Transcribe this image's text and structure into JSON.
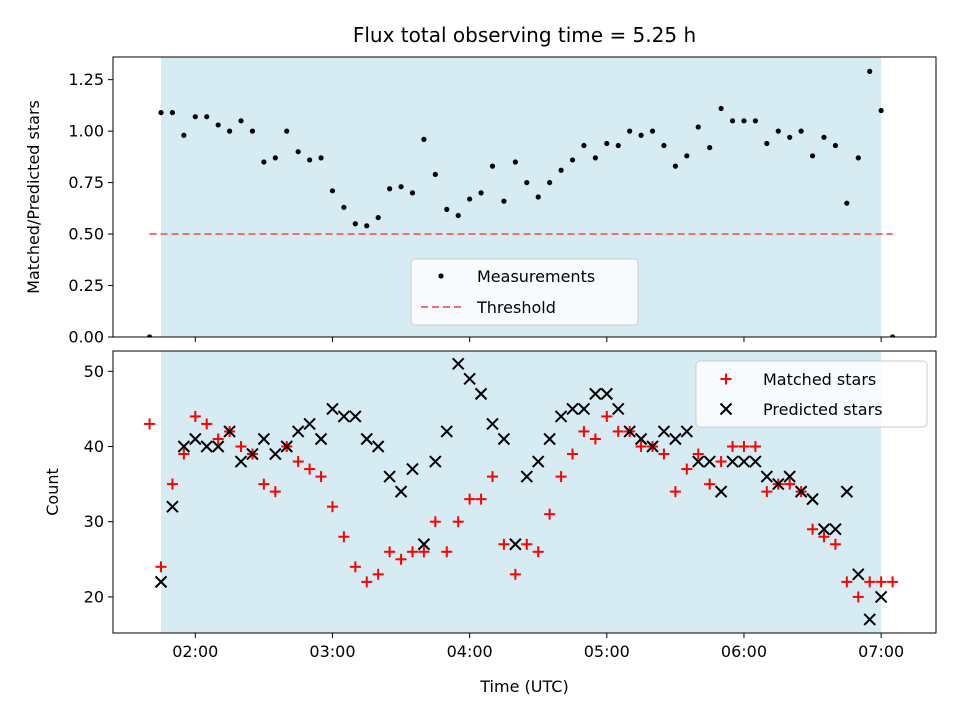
{
  "chart_data": [
    {
      "type": "scatter",
      "title": "Flux total observing time = 5.25 h",
      "ylabel": "Matched/Predicted stars",
      "ylim": [
        0,
        1.36
      ],
      "yticks": [
        0.0,
        0.25,
        0.5,
        0.75,
        1.0,
        1.25
      ],
      "ytick_labels": [
        "0.00",
        "0.25",
        "0.50",
        "0.75",
        "1.00",
        "1.25"
      ],
      "shaded_region": {
        "from": "01:45",
        "to": "07:00",
        "color": "#add8e6"
      },
      "threshold": {
        "value": 0.5,
        "from": "01:40",
        "to": "07:05",
        "color": "#f07070"
      },
      "legend": {
        "placement": "lower center",
        "entries": [
          "Measurements",
          "Threshold"
        ]
      },
      "series": [
        {
          "name": "Measurements",
          "color": "#000000",
          "marker": "dot",
          "x": [
            "01:40",
            "01:45",
            "01:50",
            "01:55",
            "02:00",
            "02:05",
            "02:10",
            "02:15",
            "02:20",
            "02:25",
            "02:30",
            "02:35",
            "02:40",
            "02:45",
            "02:50",
            "02:55",
            "03:00",
            "03:05",
            "03:10",
            "03:15",
            "03:20",
            "03:25",
            "03:30",
            "03:35",
            "03:40",
            "03:45",
            "03:50",
            "03:55",
            "04:00",
            "04:05",
            "04:10",
            "04:15",
            "04:20",
            "04:25",
            "04:30",
            "04:35",
            "04:40",
            "04:45",
            "04:50",
            "04:55",
            "05:00",
            "05:05",
            "05:10",
            "05:15",
            "05:20",
            "05:25",
            "05:30",
            "05:35",
            "05:40",
            "05:45",
            "05:50",
            "05:55",
            "06:00",
            "06:05",
            "06:10",
            "06:15",
            "06:20",
            "06:25",
            "06:30",
            "06:35",
            "06:40",
            "06:45",
            "06:50",
            "06:55",
            "07:00",
            "07:05"
          ],
          "y": [
            0.0,
            1.09,
            1.09,
            0.98,
            1.07,
            1.07,
            1.03,
            1.0,
            1.05,
            1.0,
            0.85,
            0.87,
            1.0,
            0.9,
            0.86,
            0.87,
            0.71,
            0.63,
            0.55,
            0.54,
            0.58,
            0.72,
            0.73,
            0.7,
            0.96,
            0.79,
            0.62,
            0.59,
            0.67,
            0.7,
            0.83,
            0.66,
            0.85,
            0.75,
            0.68,
            0.75,
            0.81,
            0.86,
            0.93,
            0.87,
            0.94,
            0.93,
            1.0,
            0.98,
            1.0,
            0.93,
            0.83,
            0.88,
            1.02,
            0.92,
            1.11,
            1.05,
            1.05,
            1.05,
            0.94,
            1.0,
            0.97,
            1.0,
            0.88,
            0.97,
            0.93,
            0.65,
            0.87,
            1.29,
            1.1,
            0.0
          ]
        }
      ]
    },
    {
      "type": "scatter",
      "xlabel": "Time (UTC)",
      "ylabel": "Count",
      "ylim": [
        15.2,
        52.7
      ],
      "yticks": [
        20,
        30,
        40,
        50
      ],
      "ytick_labels": [
        "20",
        "30",
        "40",
        "50"
      ],
      "xlim": [
        "01:24",
        "07:24"
      ],
      "xticks": [
        "02:00",
        "03:00",
        "04:00",
        "05:00",
        "06:00",
        "07:00"
      ],
      "xtick_labels": [
        "02:00",
        "03:00",
        "04:00",
        "05:00",
        "06:00",
        "07:00"
      ],
      "shaded_region": {
        "from": "01:45",
        "to": "07:00",
        "color": "#add8e6"
      },
      "legend": {
        "placement": "top-right",
        "entries": [
          "Matched stars",
          "Predicted stars"
        ]
      },
      "x": [
        "01:40",
        "01:45",
        "01:50",
        "01:55",
        "02:00",
        "02:05",
        "02:10",
        "02:15",
        "02:20",
        "02:25",
        "02:30",
        "02:35",
        "02:40",
        "02:45",
        "02:50",
        "02:55",
        "03:00",
        "03:05",
        "03:10",
        "03:15",
        "03:20",
        "03:25",
        "03:30",
        "03:35",
        "03:40",
        "03:45",
        "03:50",
        "03:55",
        "04:00",
        "04:05",
        "04:10",
        "04:15",
        "04:20",
        "04:25",
        "04:30",
        "04:35",
        "04:40",
        "04:45",
        "04:50",
        "04:55",
        "05:00",
        "05:05",
        "05:10",
        "05:15",
        "05:20",
        "05:25",
        "05:30",
        "05:35",
        "05:40",
        "05:45",
        "05:50",
        "05:55",
        "06:00",
        "06:05",
        "06:10",
        "06:15",
        "06:20",
        "06:25",
        "06:30",
        "06:35",
        "06:40",
        "06:45",
        "06:50",
        "06:55",
        "07:00",
        "07:05"
      ],
      "series": [
        {
          "name": "Matched stars",
          "color": "#ff0000",
          "marker": "plus",
          "y": [
            43,
            24,
            35,
            39,
            44,
            43,
            41,
            42,
            40,
            39,
            35,
            34,
            40,
            38,
            37,
            36,
            32,
            28,
            24,
            22,
            23,
            26,
            25,
            26,
            26,
            30,
            26,
            30,
            33,
            33,
            36,
            27,
            23,
            27,
            26,
            31,
            36,
            39,
            42,
            41,
            44,
            42,
            42,
            40,
            40,
            39,
            34,
            37,
            39,
            35,
            38,
            40,
            40,
            40,
            34,
            35,
            35,
            34,
            29,
            28,
            27,
            22,
            20,
            22,
            22,
            22
          ]
        },
        {
          "name": "Predicted stars",
          "color": "#000000",
          "marker": "x",
          "x": [
            "01:45",
            "01:50",
            "01:55",
            "02:00",
            "02:05",
            "02:10",
            "02:15",
            "02:20",
            "02:25",
            "02:30",
            "02:35",
            "02:40",
            "02:45",
            "02:50",
            "02:55",
            "03:00",
            "03:05",
            "03:10",
            "03:15",
            "03:20",
            "03:25",
            "03:30",
            "03:35",
            "03:40",
            "03:45",
            "03:50",
            "03:55",
            "04:00",
            "04:05",
            "04:10",
            "04:15",
            "04:20",
            "04:25",
            "04:30",
            "04:35",
            "04:40",
            "04:45",
            "04:50",
            "04:55",
            "05:00",
            "05:05",
            "05:10",
            "05:15",
            "05:20",
            "05:25",
            "05:30",
            "05:35",
            "05:40",
            "05:45",
            "05:50",
            "05:55",
            "06:00",
            "06:05",
            "06:10",
            "06:15",
            "06:20",
            "06:25",
            "06:30",
            "06:35",
            "06:40",
            "06:45",
            "06:50",
            "06:55",
            "07:00"
          ],
          "y": [
            22,
            32,
            40,
            41,
            40,
            40,
            42,
            38,
            39,
            41,
            39,
            40,
            42,
            43,
            41,
            45,
            44,
            44,
            41,
            40,
            36,
            34,
            37,
            27,
            38,
            42,
            51,
            49,
            47,
            43,
            41,
            27,
            36,
            38,
            41,
            44,
            45,
            45,
            47,
            47,
            45,
            42,
            41,
            40,
            42,
            41,
            42,
            38,
            38,
            34,
            38,
            38,
            38,
            36,
            35,
            36,
            34,
            33,
            29,
            29,
            34,
            23,
            17,
            20
          ]
        }
      ]
    }
  ]
}
